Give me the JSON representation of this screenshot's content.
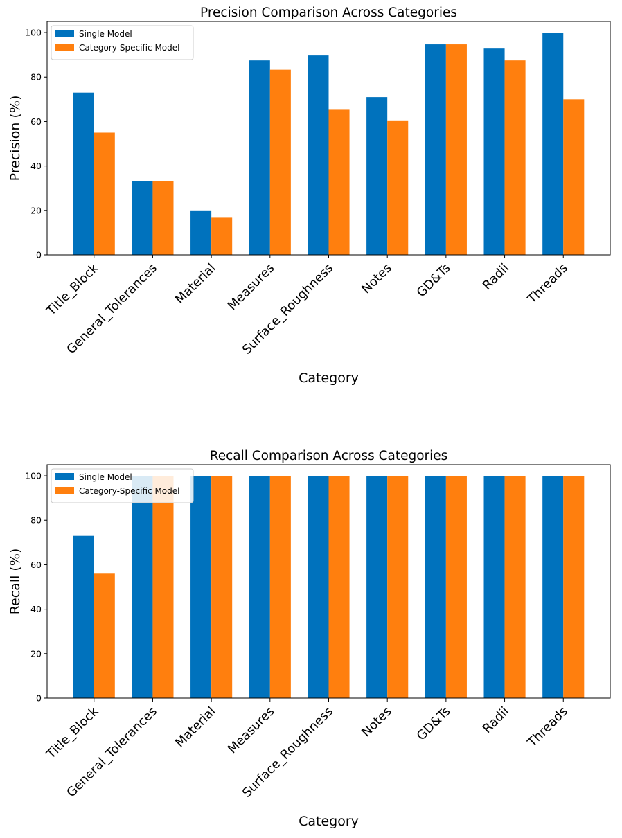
{
  "chart_data": [
    {
      "type": "bar",
      "title": "Precision Comparison Across Categories",
      "xlabel": "Category",
      "ylabel": "Precision (%)",
      "ylim": [
        0,
        105
      ],
      "yticks": [
        0,
        20,
        40,
        60,
        80,
        100
      ],
      "grid": false,
      "legend_position": "top-left",
      "categories": [
        "Title_Block",
        "General_Tolerances",
        "Material",
        "Measures",
        "Surface_Roughness",
        "Notes",
        "GD&Ts",
        "Radii",
        "Threads"
      ],
      "series": [
        {
          "name": "Single Model",
          "color": "#0072bd",
          "values": [
            73,
            33.3,
            20,
            87.5,
            89.7,
            71,
            94.7,
            92.8,
            100
          ]
        },
        {
          "name": "Category-Specific Model",
          "color": "#ff7f0e",
          "values": [
            55,
            33.3,
            16.7,
            83.3,
            65.3,
            60.5,
            94.7,
            87.5,
            70
          ]
        }
      ]
    },
    {
      "type": "bar",
      "title": "Recall Comparison Across Categories",
      "xlabel": "Category",
      "ylabel": "Recall (%)",
      "ylim": [
        0,
        105
      ],
      "yticks": [
        0,
        20,
        40,
        60,
        80,
        100
      ],
      "grid": false,
      "legend_position": "top-left",
      "categories": [
        "Title_Block",
        "General_Tolerances",
        "Material",
        "Measures",
        "Surface_Roughness",
        "Notes",
        "GD&Ts",
        "Radii",
        "Threads"
      ],
      "series": [
        {
          "name": "Single Model",
          "color": "#0072bd",
          "values": [
            73,
            100,
            100,
            100,
            100,
            100,
            100,
            100,
            100
          ]
        },
        {
          "name": "Category-Specific Model",
          "color": "#ff7f0e",
          "values": [
            56,
            100,
            100,
            100,
            100,
            100,
            100,
            100,
            100
          ]
        }
      ]
    }
  ]
}
